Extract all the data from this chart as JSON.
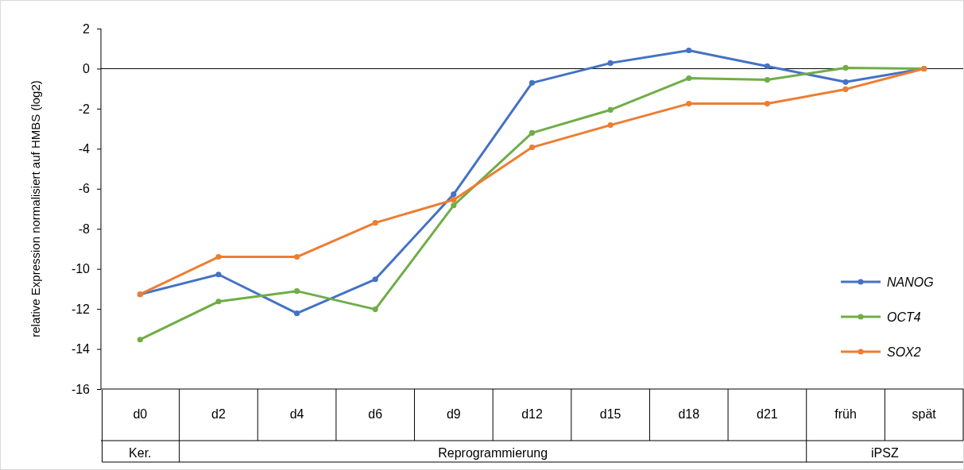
{
  "chart_data": {
    "type": "line",
    "ylabel": "relative Expression normalisiert auf HMBS (log2)",
    "categories": [
      "d0",
      "d2",
      "d4",
      "d6",
      "d9",
      "d12",
      "d15",
      "d18",
      "d21",
      "früh",
      "spät"
    ],
    "series": [
      {
        "name": "NANOG",
        "color": "#4472c4",
        "values": [
          -11.27,
          -10.28,
          -12.22,
          -10.52,
          -6.27,
          -0.71,
          0.28,
          0.91,
          0.12,
          -0.67,
          0
        ]
      },
      {
        "name": "OCT4",
        "color": "#70ad47",
        "values": [
          -13.53,
          -11.63,
          -11.11,
          -12.02,
          -6.83,
          -3.21,
          -2.06,
          -0.48,
          -0.56,
          0.04,
          0
        ]
      },
      {
        "name": "SOX2",
        "color": "#ed7d31",
        "values": [
          -11.27,
          -9.4,
          -9.4,
          -7.7,
          -6.55,
          -3.93,
          -2.82,
          -1.75,
          -1.75,
          -1.03,
          0
        ]
      }
    ],
    "ylim": [
      -16,
      2
    ],
    "yticks": [
      -16,
      -14,
      -12,
      -10,
      -8,
      -6,
      -4,
      -2,
      0,
      2
    ],
    "ref_lines": [
      {
        "axis": "y",
        "value": 0,
        "color": "#000000"
      }
    ],
    "annotations": [
      "Ker.",
      "Reprogrammierung",
      "iPSZ"
    ],
    "legend": "right",
    "marker": "circle",
    "line_style": "solid",
    "grid": false
  }
}
